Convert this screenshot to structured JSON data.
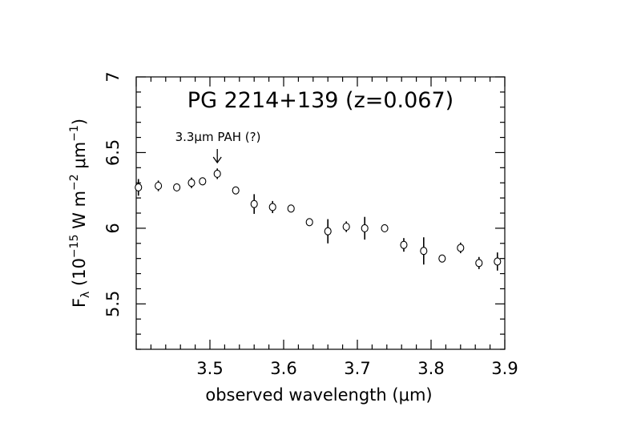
{
  "chart_data": {
    "type": "scatter",
    "title": "PG 2214+139 (z=0.067)",
    "xlabel": "observed wavelength (μm)",
    "ylabel": {
      "main": "F",
      "sub": "λ",
      "open": " (10",
      "exp1": "−15",
      "mid": " W m",
      "exp2": "−2",
      "unit": " μm",
      "exp3": "−1",
      "close": ")"
    },
    "xlim": [
      3.4,
      3.9
    ],
    "ylim": [
      5.2,
      7.0
    ],
    "xticks": [
      3.5,
      3.6,
      3.7,
      3.8,
      3.9
    ],
    "xtick_labels": [
      "3.5",
      "3.6",
      "3.7",
      "3.8",
      "3.9"
    ],
    "yticks": [
      5.5,
      6.0,
      6.5,
      7.0
    ],
    "ytick_labels": [
      "5.5",
      "6",
      "6.5",
      "7"
    ],
    "grid": false,
    "marker": "open-circle",
    "annotation": {
      "text": "3.3μm PAH (?)",
      "x": 3.51,
      "arrow": "down"
    },
    "points": [
      {
        "x": 3.403,
        "y": 6.27,
        "err": 0.055
      },
      {
        "x": 3.43,
        "y": 6.28,
        "err": 0.035
      },
      {
        "x": 3.455,
        "y": 6.27,
        "err": 0.02
      },
      {
        "x": 3.475,
        "y": 6.3,
        "err": 0.035
      },
      {
        "x": 3.49,
        "y": 6.31,
        "err": 0.02
      },
      {
        "x": 3.51,
        "y": 6.36,
        "err": 0.035
      },
      {
        "x": 3.535,
        "y": 6.25,
        "err": 0.015
      },
      {
        "x": 3.56,
        "y": 6.16,
        "err": 0.065
      },
      {
        "x": 3.585,
        "y": 6.14,
        "err": 0.04
      },
      {
        "x": 3.61,
        "y": 6.13,
        "err": 0.015
      },
      {
        "x": 3.635,
        "y": 6.04,
        "err": 0.02
      },
      {
        "x": 3.66,
        "y": 5.98,
        "err": 0.08
      },
      {
        "x": 3.685,
        "y": 6.01,
        "err": 0.035
      },
      {
        "x": 3.71,
        "y": 6.0,
        "err": 0.075
      },
      {
        "x": 3.737,
        "y": 6.0,
        "err": 0.015
      },
      {
        "x": 3.763,
        "y": 5.89,
        "err": 0.045
      },
      {
        "x": 3.79,
        "y": 5.85,
        "err": 0.09
      },
      {
        "x": 3.815,
        "y": 5.8,
        "err": 0.02
      },
      {
        "x": 3.84,
        "y": 5.87,
        "err": 0.035
      },
      {
        "x": 3.865,
        "y": 5.77,
        "err": 0.04
      },
      {
        "x": 3.89,
        "y": 5.78,
        "err": 0.06
      }
    ]
  }
}
